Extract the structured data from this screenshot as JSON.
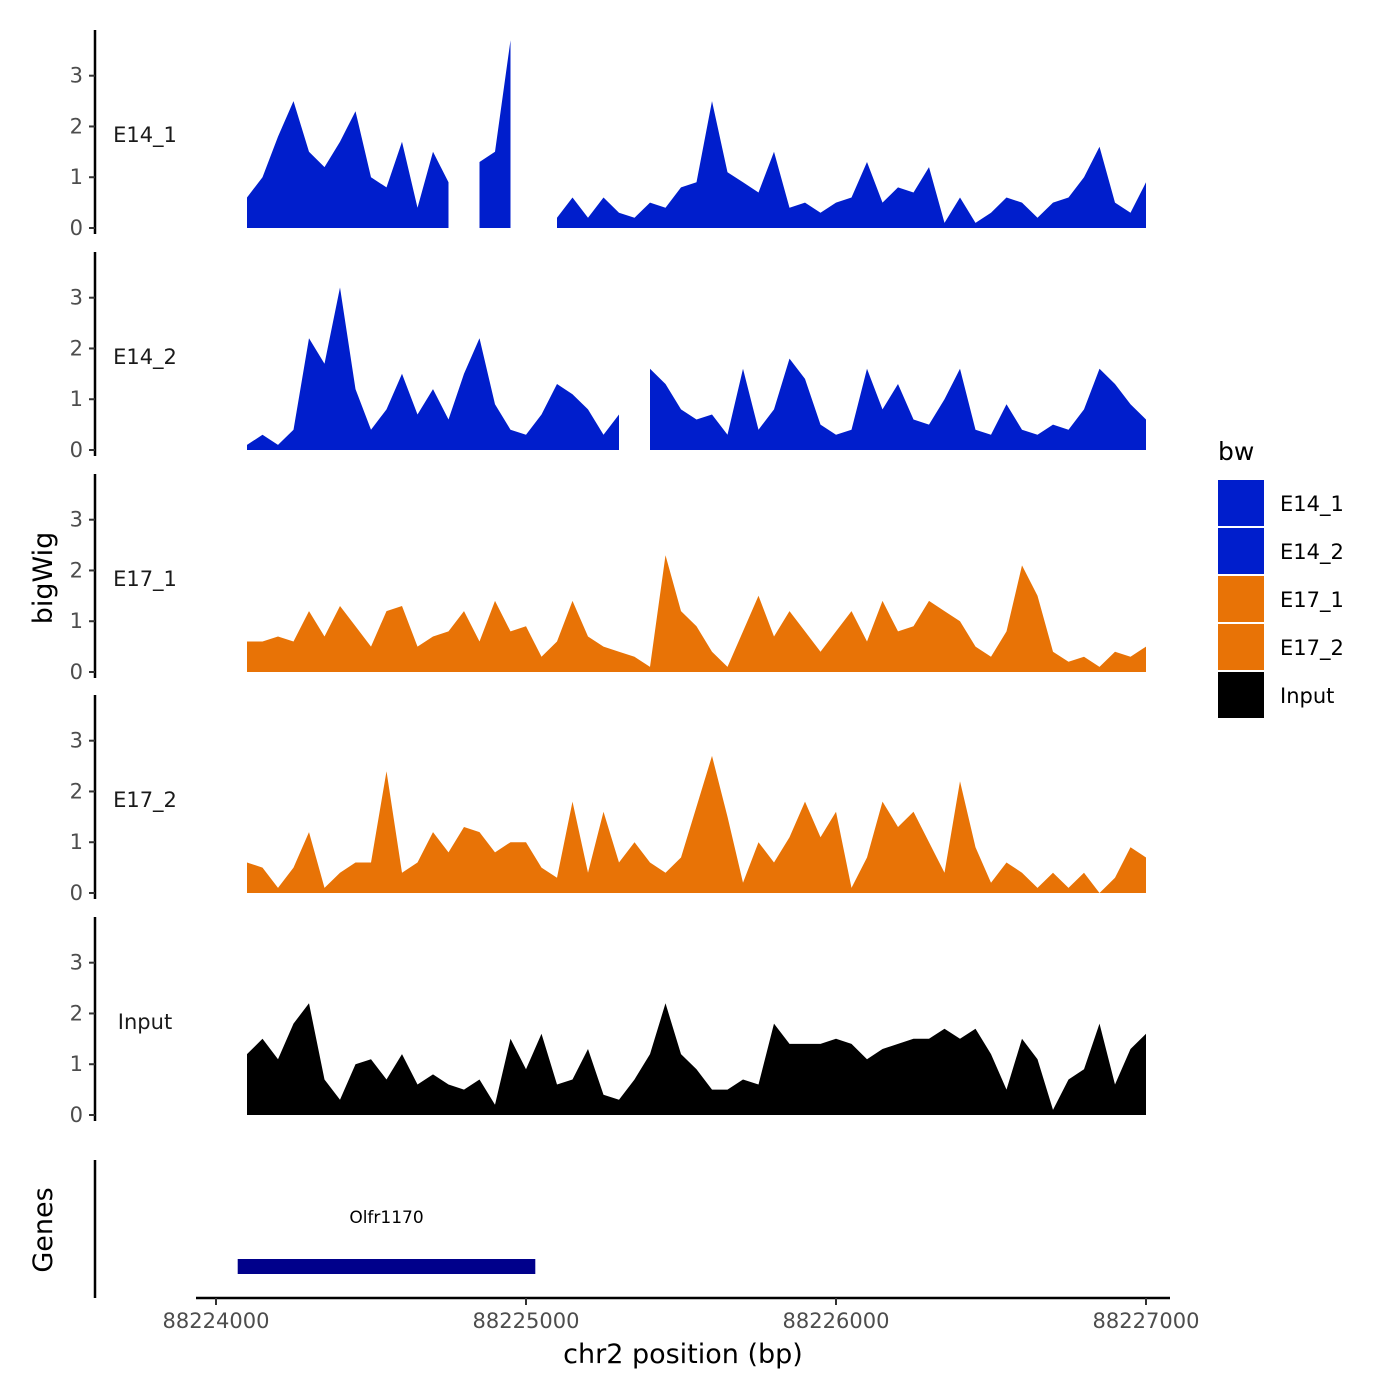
{
  "chart_data": {
    "type": "area",
    "title": "",
    "xlabel": "chr2 position (bp)",
    "ylabel": "bigWig",
    "xlim": [
      88224000,
      88227000
    ],
    "ylim": [
      0,
      3.9
    ],
    "x_ticks": [
      88224000,
      88225000,
      88226000,
      88227000
    ],
    "x_tick_labels": [
      "88224000",
      "88225000",
      "88226000",
      "88227000"
    ],
    "y_ticks": [
      0,
      1,
      2,
      3
    ],
    "y_tick_labels": [
      "0",
      "1",
      "2",
      "3"
    ],
    "x": [
      88224100,
      88224150,
      88224200,
      88224250,
      88224300,
      88224350,
      88224400,
      88224450,
      88224500,
      88224550,
      88224600,
      88224650,
      88224700,
      88224750,
      88224800,
      88224850,
      88224900,
      88224950,
      88225000,
      88225050,
      88225100,
      88225150,
      88225200,
      88225250,
      88225300,
      88225350,
      88225400,
      88225450,
      88225500,
      88225550,
      88225600,
      88225650,
      88225700,
      88225750,
      88225800,
      88225850,
      88225900,
      88225950,
      88226000,
      88226050,
      88226100,
      88226150,
      88226200,
      88226250,
      88226300,
      88226350,
      88226400,
      88226450,
      88226500,
      88226550,
      88226600,
      88226650,
      88226700,
      88226750,
      88226800,
      88226850,
      88226900,
      88226950,
      88227000
    ],
    "series": [
      {
        "name": "E14_1",
        "color": "#001ECC",
        "values": [
          0.6,
          1.0,
          1.8,
          2.5,
          1.5,
          1.2,
          1.7,
          2.3,
          1.0,
          0.8,
          1.7,
          0.4,
          1.5,
          0.9,
          null,
          1.3,
          1.5,
          3.7,
          null,
          null,
          0.2,
          0.6,
          0.2,
          0.6,
          0.3,
          0.2,
          0.5,
          0.4,
          0.8,
          0.9,
          2.5,
          1.1,
          0.9,
          0.7,
          1.5,
          0.4,
          0.5,
          0.3,
          0.5,
          0.6,
          1.3,
          0.5,
          0.8,
          0.7,
          1.2,
          0.1,
          0.6,
          0.1,
          0.3,
          0.6,
          0.5,
          0.2,
          0.5,
          0.6,
          1.0,
          1.6,
          0.5,
          0.3,
          0.9
        ]
      },
      {
        "name": "E14_2",
        "color": "#001ECC",
        "values": [
          0.1,
          0.3,
          0.1,
          0.4,
          2.2,
          1.7,
          3.2,
          1.2,
          0.4,
          0.8,
          1.5,
          0.7,
          1.2,
          0.6,
          1.5,
          2.2,
          0.9,
          0.4,
          0.3,
          0.7,
          1.3,
          1.1,
          0.8,
          0.3,
          0.7,
          null,
          1.6,
          1.3,
          0.8,
          0.6,
          0.7,
          0.3,
          1.6,
          0.4,
          0.8,
          1.8,
          1.4,
          0.5,
          0.3,
          0.4,
          1.6,
          0.8,
          1.3,
          0.6,
          0.5,
          1.0,
          1.6,
          0.4,
          0.3,
          0.9,
          0.4,
          0.3,
          0.5,
          0.4,
          0.8,
          1.6,
          1.3,
          0.9,
          0.6
        ]
      },
      {
        "name": "E17_1",
        "color": "#E87306",
        "values": [
          0.6,
          0.6,
          0.7,
          0.6,
          1.2,
          0.7,
          1.3,
          0.9,
          0.5,
          1.2,
          1.3,
          0.5,
          0.7,
          0.8,
          1.2,
          0.6,
          1.4,
          0.8,
          0.9,
          0.3,
          0.6,
          1.4,
          0.7,
          0.5,
          0.4,
          0.3,
          0.1,
          2.3,
          1.2,
          0.9,
          0.4,
          0.1,
          0.8,
          1.5,
          0.7,
          1.2,
          0.8,
          0.4,
          0.8,
          1.2,
          0.6,
          1.4,
          0.8,
          0.9,
          1.4,
          1.2,
          1.0,
          0.5,
          0.3,
          0.8,
          2.1,
          1.5,
          0.4,
          0.2,
          0.3,
          0.1,
          0.4,
          0.3,
          0.5
        ]
      },
      {
        "name": "E17_2",
        "color": "#E87306",
        "values": [
          0.6,
          0.5,
          0.1,
          0.5,
          1.2,
          0.1,
          0.4,
          0.6,
          0.6,
          2.4,
          0.4,
          0.6,
          1.2,
          0.8,
          1.3,
          1.2,
          0.8,
          1.0,
          1.0,
          0.5,
          0.3,
          1.8,
          0.4,
          1.6,
          0.6,
          1.0,
          0.6,
          0.4,
          0.7,
          1.7,
          2.7,
          1.5,
          0.2,
          1.0,
          0.6,
          1.1,
          1.8,
          1.1,
          1.6,
          0.1,
          0.7,
          1.8,
          1.3,
          1.6,
          1.0,
          0.4,
          2.2,
          0.9,
          0.2,
          0.6,
          0.4,
          0.1,
          0.4,
          0.1,
          0.4,
          0.0,
          0.3,
          0.9,
          0.7
        ]
      },
      {
        "name": "Input",
        "color": "#000000",
        "values": [
          1.2,
          1.5,
          1.1,
          1.8,
          2.2,
          0.7,
          0.3,
          1.0,
          1.1,
          0.7,
          1.2,
          0.6,
          0.8,
          0.6,
          0.5,
          0.7,
          0.2,
          1.5,
          0.9,
          1.6,
          0.6,
          0.7,
          1.3,
          0.4,
          0.3,
          0.7,
          1.2,
          2.2,
          1.2,
          0.9,
          0.5,
          0.5,
          0.7,
          0.6,
          1.8,
          1.4,
          1.4,
          1.4,
          1.5,
          1.4,
          1.1,
          1.3,
          1.4,
          1.5,
          1.5,
          1.7,
          1.5,
          1.7,
          1.2,
          0.5,
          1.5,
          1.1,
          0.1,
          0.7,
          0.9,
          1.8,
          0.6,
          1.3,
          1.6
        ]
      }
    ],
    "panel_labels": [
      "E14_1",
      "E14_2",
      "E17_1",
      "E17_2",
      "Input"
    ],
    "gene_track": {
      "label": "Genes",
      "genes": [
        {
          "name": "Olfr1170",
          "start": 88224070,
          "end": 88225030,
          "color": "#00008B"
        }
      ]
    },
    "legend": {
      "title": "bw",
      "position": "right",
      "entries": [
        {
          "label": "E14_1",
          "color": "#001ECC"
        },
        {
          "label": "E14_2",
          "color": "#001ECC"
        },
        {
          "label": "E17_1",
          "color": "#E87306"
        },
        {
          "label": "E17_2",
          "color": "#E87306"
        },
        {
          "label": "Input",
          "color": "#000000"
        }
      ]
    }
  }
}
